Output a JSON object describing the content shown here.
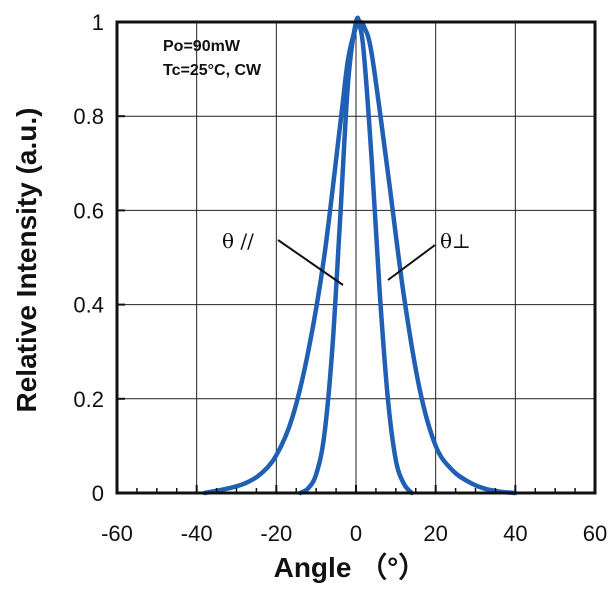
{
  "chart_data": {
    "type": "line",
    "title": "",
    "xlabel": "Angle （°）",
    "ylabel": "Relative Intensity (a.u.)",
    "xlim": [
      -60,
      60
    ],
    "ylim": [
      0,
      1
    ],
    "xticks": [
      -60,
      -40,
      -20,
      0,
      20,
      40,
      60
    ],
    "yticks": [
      0,
      0.2,
      0.4,
      0.6,
      0.8,
      1
    ],
    "ytick_labels": [
      "0",
      "0.2",
      "0.4",
      "0.6",
      "0.8",
      "1"
    ],
    "grid": true,
    "line_color": "#1f5fb4",
    "annotations": [
      "Po=90mW",
      "Tc=25°C, CW"
    ],
    "series": [
      {
        "name": "θ //",
        "x": [
          -14,
          -12,
          -10,
          -8,
          -6,
          -4,
          -2,
          0,
          1,
          2,
          4,
          6,
          8,
          10,
          12,
          14
        ],
        "y": [
          0,
          0.01,
          0.04,
          0.12,
          0.3,
          0.58,
          0.87,
          1.0,
          0.99,
          0.93,
          0.7,
          0.42,
          0.2,
          0.07,
          0.02,
          0
        ]
      },
      {
        "name": "θ⊥",
        "x": [
          -38,
          -32,
          -28,
          -24,
          -20,
          -16,
          -12,
          -8,
          -4,
          -2,
          0,
          1,
          2,
          4,
          8,
          12,
          16,
          20,
          24,
          28,
          32,
          36,
          40
        ],
        "y": [
          0,
          0.01,
          0.02,
          0.04,
          0.08,
          0.16,
          0.3,
          0.5,
          0.78,
          0.92,
          0.99,
          1.0,
          0.99,
          0.93,
          0.68,
          0.42,
          0.22,
          0.1,
          0.05,
          0.025,
          0.01,
          0.003,
          0
        ]
      }
    ]
  }
}
